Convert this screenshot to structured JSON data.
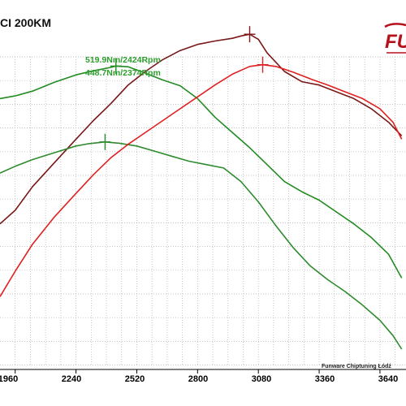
{
  "title": "CI 200KM",
  "brand": {
    "logo_text": "FU",
    "footer": "Funware Chiptuning Łódź",
    "color": "#b5121b"
  },
  "annotations": [
    "519.9Nm/2424Rpm",
    "448.7Nm/2374Rpm"
  ],
  "colors": {
    "torque_tuned": "#7a1717",
    "torque_stock": "#e02020",
    "power_tuned": "#228b22",
    "power_stock": "#2e8b2e",
    "grid": "#b0b0b0"
  },
  "chart_data": {
    "type": "line",
    "xlabel": "",
    "ylabel": "",
    "xlim": [
      1890,
      3760
    ],
    "xticks": [
      1960,
      2240,
      2520,
      2800,
      3080,
      3360,
      3640
    ],
    "grid": true,
    "series": [
      {
        "key": "power_tuned",
        "x": [
          1890,
          1960,
          2040,
          2140,
          2240,
          2320,
          2400,
          2424,
          2480,
          2560,
          2640,
          2720,
          2800,
          2880,
          2960,
          3040,
          3120,
          3200,
          3280,
          3360,
          3440,
          3520,
          3600,
          3680,
          3740
        ],
        "y": [
          0.8,
          0.808,
          0.822,
          0.848,
          0.87,
          0.882,
          0.892,
          0.896,
          0.894,
          0.875,
          0.855,
          0.838,
          0.8,
          0.745,
          0.7,
          0.655,
          0.605,
          0.555,
          0.525,
          0.5,
          0.465,
          0.43,
          0.39,
          0.34,
          0.27
        ]
      },
      {
        "key": "torque_tuned",
        "x": [
          1890,
          1960,
          2040,
          2140,
          2240,
          2320,
          2400,
          2480,
          2560,
          2640,
          2720,
          2800,
          2880,
          2960,
          3000,
          3040,
          3080,
          3120,
          3200,
          3280,
          3360,
          3440,
          3520,
          3600,
          3680,
          3740
        ],
        "y": [
          0.43,
          0.47,
          0.54,
          0.61,
          0.68,
          0.735,
          0.785,
          0.84,
          0.88,
          0.915,
          0.942,
          0.96,
          0.97,
          0.978,
          0.985,
          0.99,
          0.975,
          0.935,
          0.88,
          0.85,
          0.84,
          0.82,
          0.8,
          0.77,
          0.73,
          0.69
        ]
      },
      {
        "key": "power_stock",
        "x": [
          1890,
          1960,
          2040,
          2140,
          2240,
          2300,
          2374,
          2440,
          2520,
          2600,
          2680,
          2760,
          2840,
          2920,
          3000,
          3080,
          3160,
          3240,
          3320,
          3400,
          3480,
          3560,
          3640,
          3700,
          3740
        ],
        "y": [
          0.58,
          0.6,
          0.62,
          0.64,
          0.66,
          0.667,
          0.672,
          0.668,
          0.66,
          0.645,
          0.63,
          0.615,
          0.605,
          0.595,
          0.555,
          0.495,
          0.425,
          0.36,
          0.305,
          0.265,
          0.23,
          0.19,
          0.145,
          0.1,
          0.06
        ]
      },
      {
        "key": "torque_stock",
        "x": [
          1890,
          1960,
          2040,
          2140,
          2240,
          2320,
          2400,
          2480,
          2560,
          2640,
          2720,
          2800,
          2880,
          2960,
          3040,
          3100,
          3160,
          3240,
          3320,
          3400,
          3480,
          3560,
          3640,
          3700,
          3740
        ],
        "y": [
          0.215,
          0.29,
          0.37,
          0.45,
          0.52,
          0.575,
          0.625,
          0.665,
          0.7,
          0.735,
          0.77,
          0.805,
          0.84,
          0.872,
          0.895,
          0.9,
          0.895,
          0.878,
          0.858,
          0.84,
          0.82,
          0.8,
          0.77,
          0.73,
          0.68
        ]
      }
    ],
    "markers": [
      {
        "series": "power_tuned",
        "x": 2424,
        "y": 0.896
      },
      {
        "series": "power_stock",
        "x": 2374,
        "y": 0.672
      },
      {
        "series": "torque_tuned",
        "x": 3040,
        "y": 0.99
      },
      {
        "series": "torque_stock",
        "x": 3100,
        "y": 0.9
      }
    ]
  }
}
